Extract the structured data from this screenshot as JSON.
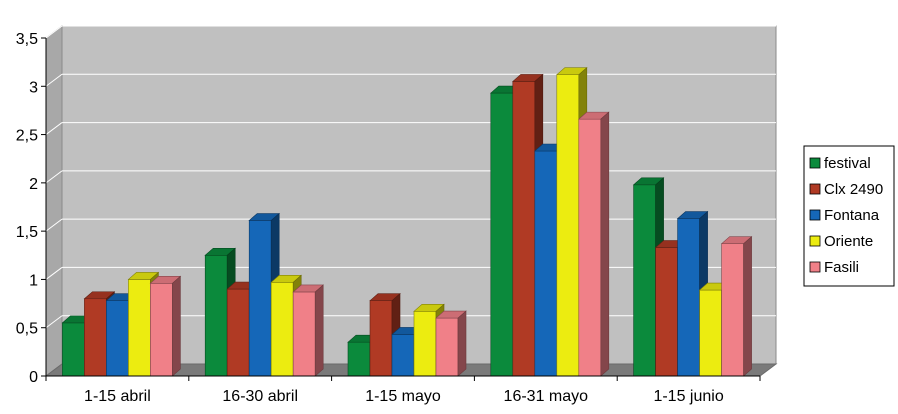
{
  "chart_data": {
    "type": "bar",
    "style": "3d-clustered-column",
    "categories": [
      "1-15 abril",
      "16-30 abril",
      "1-15 mayo",
      "16-31  mayo",
      "1-15 junio"
    ],
    "series": [
      {
        "name": "festival",
        "color": "#0b8a3c",
        "values": [
          0.55,
          1.25,
          0.35,
          2.93,
          1.98
        ]
      },
      {
        "name": "Clx 2490",
        "color": "#b03a24",
        "values": [
          0.8,
          0.9,
          0.78,
          3.05,
          1.33
        ]
      },
      {
        "name": "Fontana",
        "color": "#1567b8",
        "values": [
          0.78,
          1.61,
          0.43,
          2.33,
          1.63
        ]
      },
      {
        "name": "Oriente",
        "color": "#ecec10",
        "values": [
          1.0,
          0.97,
          0.67,
          3.12,
          0.89
        ]
      },
      {
        "name": "Fasili",
        "color": "#f08088",
        "values": [
          0.96,
          0.87,
          0.6,
          2.66,
          1.37
        ]
      }
    ],
    "y_ticks": [
      "0",
      "0,5",
      "1",
      "1,5",
      "2",
      "2,5",
      "3",
      "3,5"
    ],
    "ylim": [
      0,
      3.5
    ],
    "grid": true,
    "legend_position": "right",
    "plot_background": "#c0c0c0"
  }
}
